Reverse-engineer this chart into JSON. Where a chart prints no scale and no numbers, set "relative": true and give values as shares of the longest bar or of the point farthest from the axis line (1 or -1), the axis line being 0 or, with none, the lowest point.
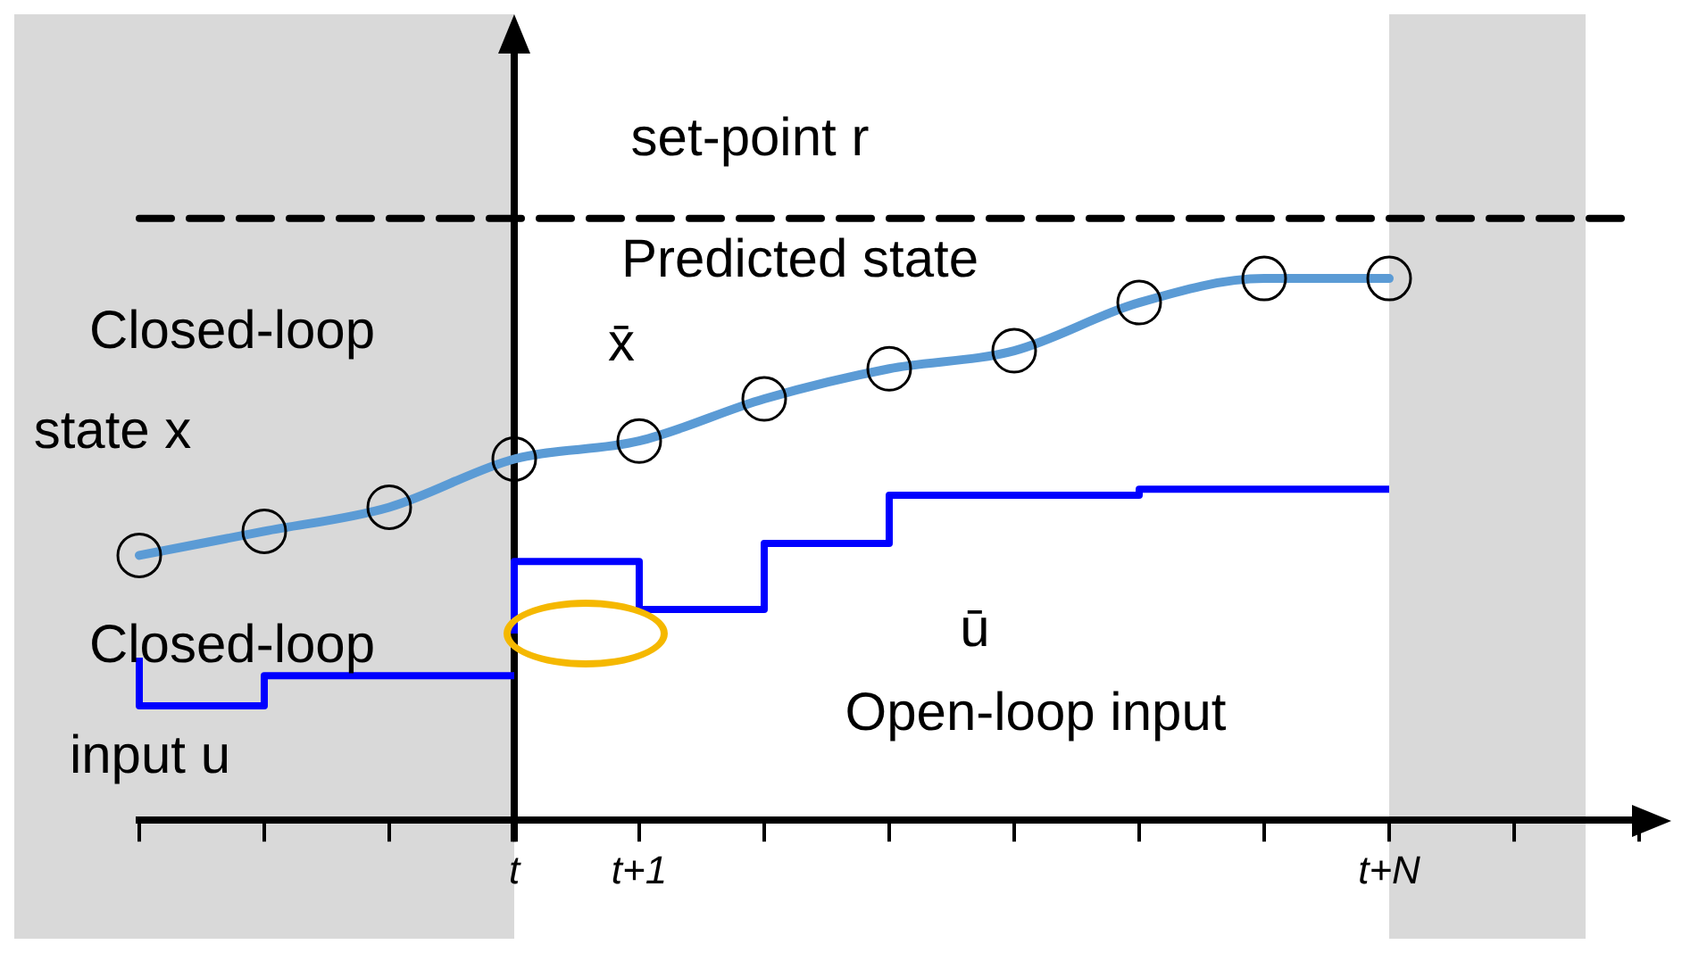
{
  "chart_data": {
    "type": "line",
    "relative": true,
    "categories": [
      null,
      null,
      null,
      "t",
      "t+1",
      null,
      null,
      null,
      null,
      null,
      "t+N",
      null,
      null
    ],
    "grid": false,
    "legend": false,
    "series": [
      {
        "color": "#000000",
        "marker": "none",
        "line_style": "dashed",
        "values": [
          1,
          1,
          1,
          1,
          1,
          1,
          1,
          1,
          1,
          1,
          1,
          1,
          1
        ]
      },
      {
        "color": "#5b9bd5",
        "marker": "circle",
        "values": [
          0.44,
          0.48,
          0.52,
          0.6,
          0.63,
          0.7,
          0.75,
          0.78,
          0.86,
          0.9,
          0.9,
          null,
          null
        ]
      },
      {
        "type": "step",
        "color": "#0000ff",
        "marker": "none",
        "values": [
          0.27,
          0.19,
          0.24,
          0.24,
          null,
          null,
          null,
          null,
          null,
          null,
          null,
          null,
          null
        ]
      },
      {
        "type": "step",
        "color": "#0000ff",
        "marker": "none",
        "values": [
          null,
          null,
          null,
          0.31,
          0.43,
          0.35,
          0.46,
          0.54,
          0.54,
          0.55,
          0.55,
          null,
          null
        ]
      }
    ],
    "ref_lines": [
      {
        "axis": "x",
        "value": "t",
        "color": "#000000",
        "line_style": "solid"
      }
    ],
    "annotations": [
      "set-point r",
      "Predicted state",
      "x̄",
      "Closed-loop",
      "state x",
      "Closed-loop",
      "input u",
      "ū",
      "Open-loop input"
    ]
  }
}
